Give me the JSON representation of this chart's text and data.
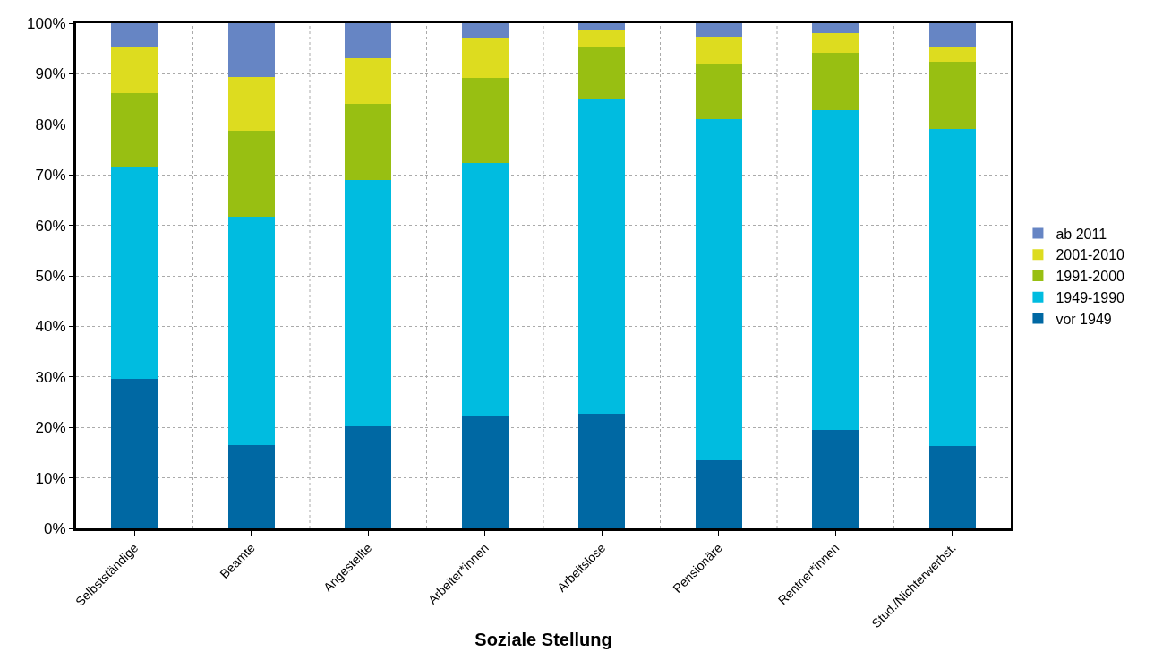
{
  "chart_data": {
    "type": "bar",
    "stacked": true,
    "xlabel": "Soziale Stellung",
    "categories": [
      "Selbstständige",
      "Beamte",
      "Angestellte",
      "Arbeiter*innen",
      "Arbeitslose",
      "Pensionäre",
      "Rentner*innen",
      "Stud./Nichterwerbst."
    ],
    "series": [
      {
        "name": "vor 1949",
        "color": "#0068a3",
        "values": [
          29.6,
          16.5,
          20.2,
          22.2,
          22.7,
          13.5,
          19.5,
          16.3
        ]
      },
      {
        "name": "1949-1990",
        "color": "#00bce0",
        "values": [
          41.9,
          45.2,
          48.8,
          50.2,
          62.4,
          67.6,
          63.3,
          62.8
        ]
      },
      {
        "name": "1991-2000",
        "color": "#98bf12",
        "values": [
          14.7,
          17.0,
          15.1,
          16.8,
          10.3,
          10.8,
          11.3,
          13.3
        ]
      },
      {
        "name": "2001-2010",
        "color": "#dddc1f",
        "values": [
          9.0,
          10.7,
          8.9,
          7.9,
          3.3,
          5.4,
          3.9,
          2.9
        ]
      },
      {
        "name": "ab 2011",
        "color": "#6685c4",
        "values": [
          4.8,
          10.6,
          7.0,
          2.9,
          1.3,
          2.7,
          2.0,
          4.7
        ]
      }
    ],
    "ylim": [
      0,
      100
    ],
    "yticks": [
      {
        "value": 0,
        "label": "0%"
      },
      {
        "value": 10,
        "label": "10%"
      },
      {
        "value": 20,
        "label": "20%"
      },
      {
        "value": 30,
        "label": "30%"
      },
      {
        "value": 40,
        "label": "40%"
      },
      {
        "value": 50,
        "label": "50%"
      },
      {
        "value": 60,
        "label": "60%"
      },
      {
        "value": 70,
        "label": "70%"
      },
      {
        "value": 80,
        "label": "80%"
      },
      {
        "value": 90,
        "label": "90%"
      },
      {
        "value": 100,
        "label": "100%"
      }
    ],
    "grid": true,
    "legend": "right"
  }
}
